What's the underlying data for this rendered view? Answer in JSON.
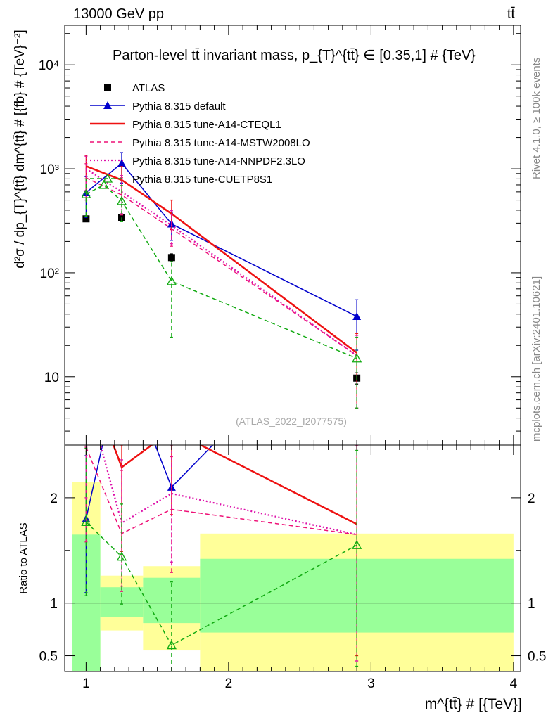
{
  "header": {
    "energy_label": "13000 GeV pp",
    "process_label": "tt̄",
    "rivet_label": "Rivet 4.1.0, ≥ 100k events",
    "url_label": "mcplots.cern.ch [arXiv:2401.10621]"
  },
  "chart_data": [
    {
      "type": "line",
      "panel": "main",
      "title": "Parton-level tt̄ invariant mass, p_{T}^{tt̄} ∈ [0.35,1] # {TeV}",
      "analysis_id": "(ATLAS_2022_I2077575)",
      "ylabel": "d²σ / dp_{T}^{tt̄} dm^{tt̄} # [{fb} # {TeV}⁻²]",
      "yscale": "log",
      "ylim": [
        2.2,
        24000
      ],
      "xlim": [
        0.85,
        4.05
      ],
      "ytick_labels": [
        "10",
        "10²",
        "10³",
        "10⁴"
      ],
      "ytick_values": [
        10,
        100,
        1000,
        10000
      ],
      "legend_position": "top-left",
      "series": [
        {
          "name": "ATLAS",
          "color": "#000000",
          "style": "data-square",
          "x": [
            1.0,
            1.25,
            1.6,
            2.9
          ],
          "y": [
            330,
            340,
            140,
            9.7
          ],
          "err_lo": [
            15,
            18,
            12,
            1.2
          ],
          "err_hi": [
            15,
            18,
            12,
            1.2
          ]
        },
        {
          "name": "Pythia 8.315 default",
          "color": "#0000cc",
          "style": "solid-triangle",
          "x": [
            1.0,
            1.25,
            1.6,
            2.9
          ],
          "y": [
            590,
            1130,
            295,
            38
          ],
          "err_lo": [
            250,
            400,
            90,
            20
          ],
          "err_hi": [
            250,
            300,
            80,
            17
          ]
        },
        {
          "name": "Pythia 8.315 tune-A14-CTEQL1",
          "color": "#ee1111",
          "style": "solid",
          "x": [
            1.0,
            1.25,
            1.6,
            2.9
          ],
          "y": [
            1060,
            780,
            370,
            17
          ],
          "err_lo": [
            450,
            260,
            110,
            12
          ],
          "err_hi": [
            290,
            270,
            130,
            9
          ]
        },
        {
          "name": "Pythia 8.315 tune-A14-MSTW2008LO",
          "color": "#ee1177",
          "style": "dashed",
          "x": [
            1.0,
            1.25,
            1.6,
            2.9
          ],
          "y": [
            820,
            560,
            265,
            16
          ],
          "err_lo": [
            320,
            200,
            85,
            11
          ],
          "err_hi": [
            300,
            260,
            100,
            9
          ]
        },
        {
          "name": "Pythia 8.315 tune-A14-NNPDF2.3LO",
          "color": "#dd11aa",
          "style": "dotted",
          "x": [
            1.0,
            1.25,
            1.6,
            2.9
          ],
          "y": [
            1000,
            600,
            285,
            16
          ],
          "err_lo": [
            380,
            230,
            95,
            11
          ],
          "err_hi": [
            320,
            260,
            110,
            9
          ]
        },
        {
          "name": "Pythia 8.315 tune-CUETP8S1",
          "color": "#11aa11",
          "style": "dashed-open-triangle",
          "x": [
            1.0,
            1.125,
            1.25,
            1.6,
            2.9
          ],
          "y": [
            570,
            700,
            490,
            83,
            15
          ],
          "err_lo": [
            220,
            0,
            180,
            59,
            10
          ],
          "err_hi": [
            230,
            0,
            200,
            45,
            9
          ]
        }
      ]
    },
    {
      "type": "line",
      "panel": "ratio",
      "ylabel": "Ratio to ATLAS",
      "xlabel": "m^{tt̄} # [{TeV}]",
      "ylim": [
        0.35,
        2.5
      ],
      "xlim": [
        0.85,
        4.05
      ],
      "xtick_labels": [
        "1",
        "2",
        "3",
        "4"
      ],
      "xtick_values": [
        1,
        2,
        3,
        4
      ],
      "ytick_labels": [
        "0.5",
        "1",
        "2"
      ],
      "ytick_values": [
        0.5,
        1,
        2
      ],
      "bands": [
        {
          "x0": 0.9,
          "x1": 1.1,
          "green": [
            0.25,
            1.65
          ],
          "yellow": [
            0.25,
            2.15
          ]
        },
        {
          "x0": 1.1,
          "x1": 1.4,
          "green": [
            0.87,
            1.15
          ],
          "yellow": [
            0.74,
            1.26
          ]
        },
        {
          "x0": 1.4,
          "x1": 1.8,
          "green": [
            0.81,
            1.24
          ],
          "yellow": [
            0.55,
            1.35
          ]
        },
        {
          "x0": 1.8,
          "x1": 4.0,
          "green": [
            0.72,
            1.42
          ],
          "yellow": [
            0.3,
            1.66
          ]
        }
      ],
      "series": [
        {
          "name": "Pythia 8.315 default",
          "color": "#0000cc",
          "style": "solid-triangle",
          "x": [
            1.0,
            1.25,
            1.6,
            2.9
          ],
          "y": [
            1.8,
            3.32,
            2.1,
            3.9
          ],
          "err_lo": [
            0.7,
            0,
            0,
            0
          ],
          "err_hi": [
            0.6,
            0,
            0,
            0
          ]
        },
        {
          "name": "Pythia 8.315 tune-A14-CTEQL1",
          "color": "#ee1111",
          "style": "solid",
          "x": [
            1.0,
            1.25,
            1.6,
            2.9
          ],
          "y": [
            3.2,
            2.29,
            2.64,
            1.75
          ],
          "err_lo": [
            0,
            0.8,
            0.8,
            1.25
          ],
          "err_hi": [
            0,
            0.3,
            0,
            0.9
          ]
        },
        {
          "name": "Pythia 8.315 tune-A14-MSTW2008LO",
          "color": "#ee1177",
          "style": "dashed",
          "x": [
            1.0,
            1.25,
            1.6,
            2.9
          ],
          "y": [
            2.48,
            1.66,
            1.89,
            1.65
          ],
          "err_lo": [
            0.9,
            0.55,
            0.6,
            1.2
          ],
          "err_hi": [
            0,
            0.6,
            0.5,
            0.9
          ]
        },
        {
          "name": "Pythia 8.315 tune-A14-NNPDF2.3LO",
          "color": "#dd11aa",
          "style": "dotted",
          "x": [
            1.0,
            1.25,
            1.6,
            2.9
          ],
          "y": [
            3.0,
            1.76,
            2.04,
            1.65
          ],
          "err_lo": [
            1.0,
            0.6,
            0.65,
            1.2
          ],
          "err_hi": [
            0,
            0.6,
            0.5,
            0.9
          ]
        },
        {
          "name": "Pythia 8.315 tune-CUETP8S1",
          "color": "#11aa11",
          "style": "dashed-open-triangle",
          "x": [
            1.0,
            1.125,
            1.25,
            1.6,
            2.9
          ],
          "y": [
            1.77,
            0,
            1.44,
            0.6,
            1.55
          ],
          "err_lo": [
            0.7,
            0,
            0.45,
            0.42,
            1.15
          ],
          "err_hi": [
            0.7,
            0,
            0.5,
            0.6,
            0.9
          ]
        }
      ]
    }
  ]
}
